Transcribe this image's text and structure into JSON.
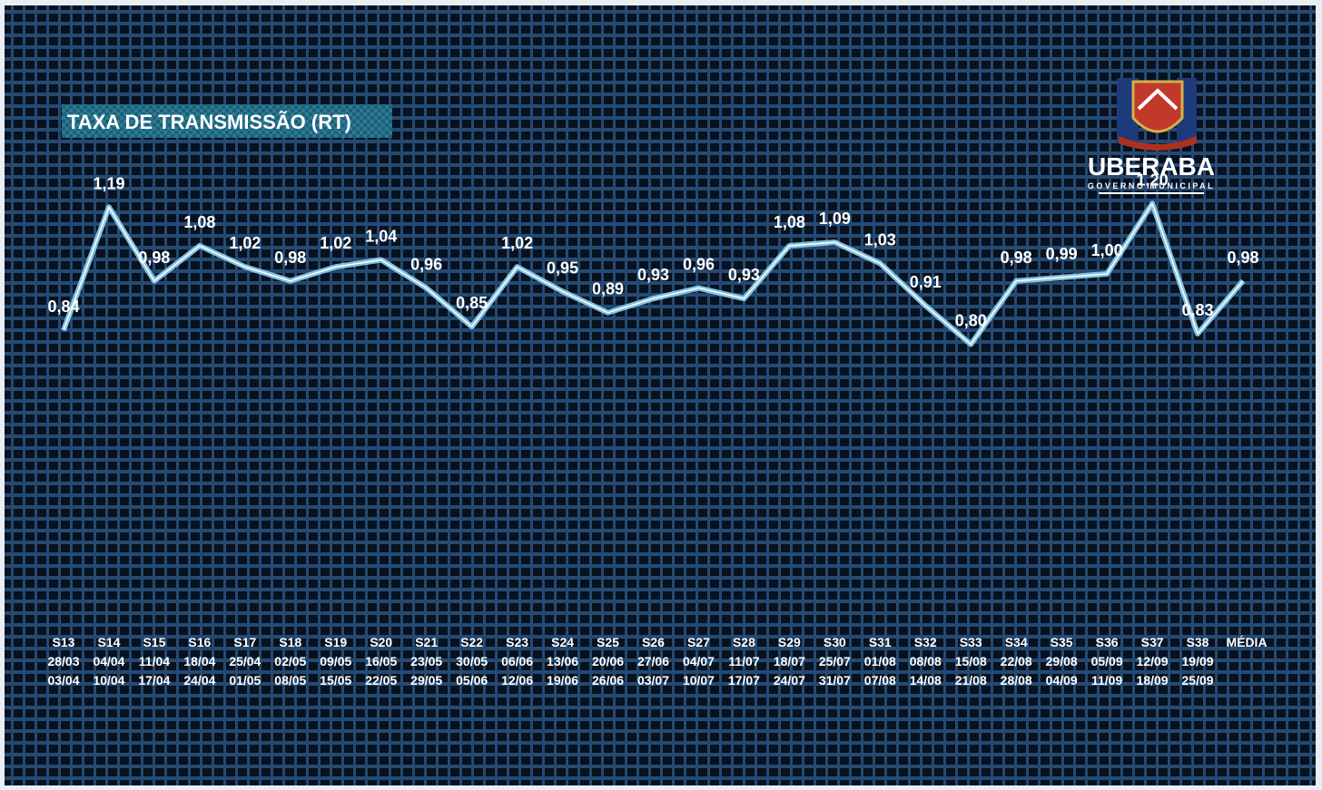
{
  "chart_data": {
    "type": "line",
    "title": "TAXA DE TRANSMISSÃO (RT)",
    "categories": [
      [
        "S13",
        "28/03",
        "03/04"
      ],
      [
        "S14",
        "04/04",
        "10/04"
      ],
      [
        "S15",
        "11/04",
        "17/04"
      ],
      [
        "S16",
        "18/04",
        "24/04"
      ],
      [
        "S17",
        "25/04",
        "01/05"
      ],
      [
        "S18",
        "02/05",
        "08/05"
      ],
      [
        "S19",
        "09/05",
        "15/05"
      ],
      [
        "S20",
        "16/05",
        "22/05"
      ],
      [
        "S21",
        "23/05",
        "29/05"
      ],
      [
        "S22",
        "30/05",
        "05/06"
      ],
      [
        "S23",
        "06/06",
        "12/06"
      ],
      [
        "S24",
        "13/06",
        "19/06"
      ],
      [
        "S25",
        "20/06",
        "26/06"
      ],
      [
        "S26",
        "27/06",
        "03/07"
      ],
      [
        "S27",
        "04/07",
        "10/07"
      ],
      [
        "S28",
        "11/07",
        "17/07"
      ],
      [
        "S29",
        "18/07",
        "24/07"
      ],
      [
        "S30",
        "25/07",
        "31/07"
      ],
      [
        "S31",
        "01/08",
        "07/08"
      ],
      [
        "S32",
        "08/08",
        "14/08"
      ],
      [
        "S33",
        "15/08",
        "21/08"
      ],
      [
        "S34",
        "22/08",
        "28/08"
      ],
      [
        "S35",
        "29/08",
        "04/09"
      ],
      [
        "S36",
        "05/09",
        "11/09"
      ],
      [
        "S37",
        "12/09",
        "18/09"
      ],
      [
        "S38",
        "19/09",
        "25/09"
      ],
      [
        "MÉDIA"
      ]
    ],
    "values": [
      0.84,
      1.19,
      0.98,
      1.08,
      1.02,
      0.98,
      1.02,
      1.04,
      0.96,
      0.85,
      1.02,
      0.95,
      0.89,
      0.93,
      0.96,
      0.93,
      1.08,
      1.09,
      1.03,
      0.91,
      0.8,
      0.98,
      0.99,
      1.0,
      1.2,
      0.83,
      0.98
    ],
    "value_labels": [
      "0,84",
      "1,19",
      "0,98",
      "1,08",
      "1,02",
      "0,98",
      "1,02",
      "1,04",
      "0,96",
      "0,85",
      "1,02",
      "0,95",
      "0,89",
      "0,93",
      "0,96",
      "0,93",
      "1,08",
      "1,09",
      "1,03",
      "0,91",
      "0,80",
      "0,98",
      "0,99",
      "1,00",
      "1,20",
      "0,83",
      "0,98"
    ],
    "color": "#8fd3f0"
  },
  "logo": {
    "title": "UBERABA",
    "subtitle": "GOVERNO MUNICIPAL"
  }
}
